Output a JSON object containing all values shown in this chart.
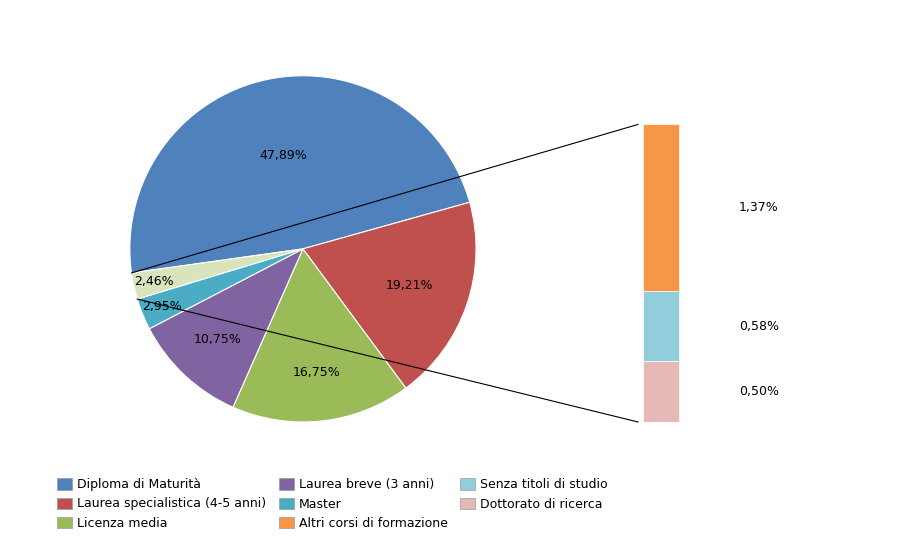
{
  "pie_values": [
    47.89,
    19.21,
    16.75,
    10.75,
    2.95,
    2.46
  ],
  "pie_colors": [
    "#4F81BD",
    "#C0504D",
    "#9BBB59",
    "#8064A2",
    "#4BACC6",
    "#D8E4BC"
  ],
  "pie_labels": [
    "47,89%",
    "19,21%",
    "16,75%",
    "10,75%",
    "2,95%",
    "2,46%"
  ],
  "pie_label_radii": [
    0.55,
    0.65,
    0.72,
    0.72,
    0.88,
    0.88
  ],
  "bar_data": [
    {
      "value": 1.37,
      "color": "#F79646",
      "label": "1,37%"
    },
    {
      "value": 0.58,
      "color": "#92CDDC",
      "label": "0,58%"
    },
    {
      "value": 0.5,
      "color": "#E6B9B8",
      "label": "0,50%"
    }
  ],
  "legend_items": [
    [
      "Diploma di Maturità",
      "#4F81BD"
    ],
    [
      "Laurea specialistica (4-5 anni)",
      "#C0504D"
    ],
    [
      "Licenza media",
      "#9BBB59"
    ],
    [
      "Laurea breve (3 anni)",
      "#8064A2"
    ],
    [
      "Master",
      "#4BACC6"
    ],
    [
      "Altri corsi di formazione",
      "#F79646"
    ],
    [
      "Senza titoli di studio",
      "#92CDDC"
    ],
    [
      "Dottorato di ricerca",
      "#E6B9B8"
    ]
  ],
  "background_color": "#FFFFFF",
  "pie_startangle": -54.0,
  "label_fontsize": 9,
  "legend_fontsize": 9
}
